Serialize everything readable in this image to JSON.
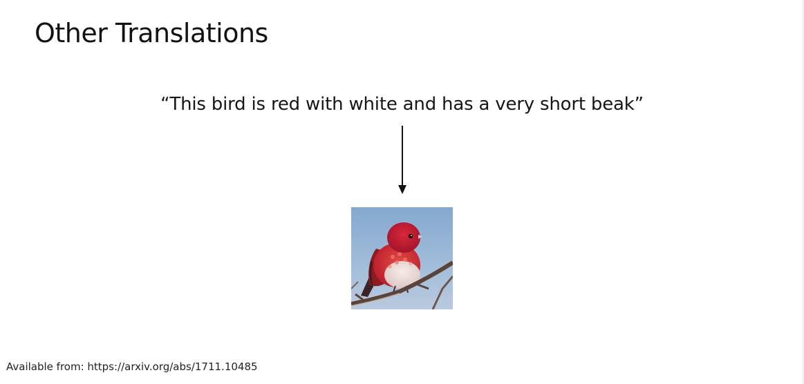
{
  "slide": {
    "title": "Other Translations",
    "caption": "“This bird is red with white and has a very short beak”",
    "footer": "Available from: https://arxiv.org/abs/1711.10485"
  },
  "image": {
    "subject": "red-bird-on-branch",
    "colors": {
      "sky": "#8fb0d2",
      "bird_red": "#c9242e",
      "bird_belly": "#efe2de",
      "branch": "#5a4036"
    }
  },
  "arrow": {
    "direction": "down",
    "color": "#111111"
  }
}
